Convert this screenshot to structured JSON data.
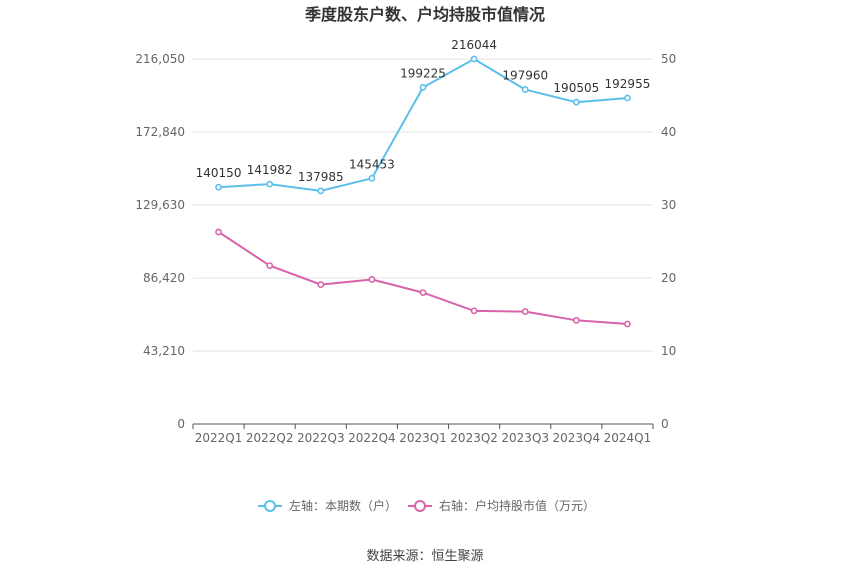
{
  "chart_data": {
    "type": "line",
    "title": "季度股东户数、户均持股市值情况",
    "categories": [
      "2022Q1",
      "2022Q2",
      "2022Q3",
      "2022Q4",
      "2023Q1",
      "2023Q2",
      "2023Q3",
      "2023Q4",
      "2024Q1"
    ],
    "left_axis": {
      "ticks": [
        0,
        43210,
        86420,
        129630,
        172840,
        216050
      ],
      "tick_labels": [
        "0",
        "43,210",
        "86,420",
        "129,630",
        "172,840",
        "216,050"
      ],
      "ylim": [
        0,
        216050
      ]
    },
    "right_axis": {
      "ticks": [
        0,
        10,
        20,
        30,
        40,
        50
      ],
      "tick_labels": [
        "0",
        "10",
        "20",
        "30",
        "40",
        "50"
      ],
      "ylim": [
        0,
        50
      ]
    },
    "series": [
      {
        "name": "左轴：本期数（户）",
        "axis": "left",
        "color": "#5bbfea",
        "values": [
          140150,
          141982,
          137985,
          145453,
          199225,
          216044,
          197960,
          190505,
          192955
        ],
        "data_labels": [
          "140150",
          "141982",
          "137985",
          "145453",
          "199225",
          "216044",
          "197960",
          "190505",
          "192955"
        ]
      },
      {
        "name": "右轴：户均持股市值（万元）",
        "axis": "right",
        "color": "#d863a8",
        "values": [
          26.3,
          21.7,
          19.1,
          19.8,
          18.0,
          15.5,
          15.4,
          14.2,
          13.7
        ]
      }
    ],
    "grid": true,
    "legend_position": "bottom-center"
  },
  "footer": {
    "source": "数据来源：恒生聚源"
  }
}
